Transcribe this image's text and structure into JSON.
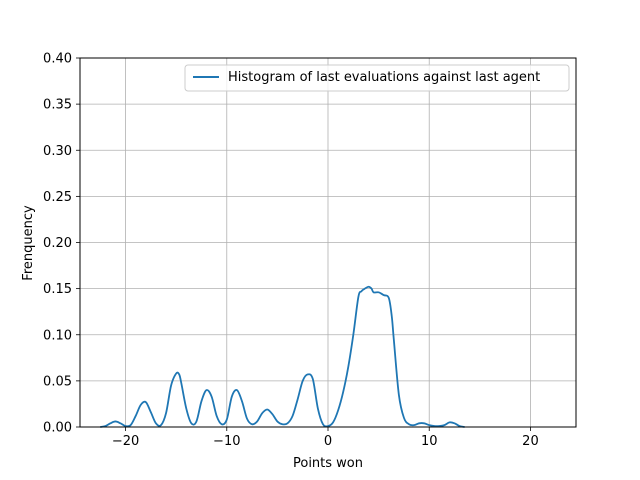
{
  "chart_data": {
    "type": "line",
    "xlabel": "Points won",
    "ylabel": "Frenquency",
    "xlim": [
      -24.5,
      24.5
    ],
    "ylim": [
      0.0,
      0.4
    ],
    "xticks": [
      -20,
      -10,
      0,
      10,
      20
    ],
    "xtick_labels": [
      "−20",
      "−10",
      "0",
      "10",
      "20"
    ],
    "yticks": [
      0.0,
      0.05,
      0.1,
      0.15,
      0.2,
      0.25,
      0.3,
      0.35,
      0.4
    ],
    "ytick_labels": [
      "0.00",
      "0.05",
      "0.10",
      "0.15",
      "0.20",
      "0.25",
      "0.30",
      "0.35",
      "0.40"
    ],
    "grid": true,
    "legend_position": "top-right",
    "series": [
      {
        "name": "Histogram of last evaluations against last agent",
        "color": "#1f77b4",
        "x": [
          -22.5,
          -22.0,
          -21.5,
          -21.0,
          -20.5,
          -20.0,
          -19.5,
          -19.0,
          -18.5,
          -18.0,
          -17.5,
          -17.0,
          -16.5,
          -16.0,
          -15.5,
          -15.0,
          -14.7,
          -14.5,
          -14.0,
          -13.5,
          -13.0,
          -12.5,
          -12.0,
          -11.5,
          -11.0,
          -10.5,
          -10.0,
          -9.5,
          -9.0,
          -8.5,
          -8.0,
          -7.5,
          -7.0,
          -6.5,
          -6.0,
          -5.5,
          -5.0,
          -4.5,
          -4.0,
          -3.5,
          -3.0,
          -2.5,
          -2.0,
          -1.5,
          -1.0,
          -0.5,
          0.0,
          0.5,
          1.0,
          1.5,
          2.0,
          2.5,
          3.0,
          3.3,
          3.5,
          4.0,
          4.3,
          4.5,
          5.0,
          5.5,
          6.0,
          6.3,
          6.5,
          7.0,
          7.5,
          8.0,
          8.5,
          9.0,
          9.5,
          10.0,
          10.5,
          11.0,
          11.5,
          12.0,
          12.5,
          13.0,
          13.5
        ],
        "y": [
          0.0,
          0.001,
          0.004,
          0.006,
          0.004,
          0.001,
          0.002,
          0.012,
          0.024,
          0.027,
          0.016,
          0.004,
          0.002,
          0.015,
          0.045,
          0.058,
          0.057,
          0.048,
          0.02,
          0.004,
          0.006,
          0.028,
          0.04,
          0.033,
          0.012,
          0.003,
          0.008,
          0.033,
          0.04,
          0.028,
          0.009,
          0.003,
          0.006,
          0.015,
          0.019,
          0.014,
          0.006,
          0.003,
          0.004,
          0.012,
          0.03,
          0.05,
          0.057,
          0.052,
          0.02,
          0.003,
          0.001,
          0.005,
          0.018,
          0.038,
          0.065,
          0.1,
          0.141,
          0.147,
          0.149,
          0.152,
          0.15,
          0.146,
          0.146,
          0.143,
          0.14,
          0.12,
          0.095,
          0.035,
          0.01,
          0.003,
          0.002,
          0.004,
          0.004,
          0.002,
          0.001,
          0.001,
          0.002,
          0.005,
          0.004,
          0.001,
          0.0
        ]
      }
    ]
  }
}
